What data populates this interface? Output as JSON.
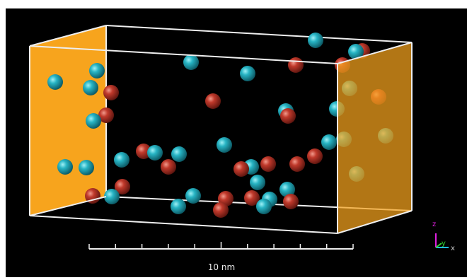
{
  "scale_bar": {
    "label": "10 nm"
  },
  "axes": {
    "z": "z",
    "y": "y",
    "x": "x"
  }
}
